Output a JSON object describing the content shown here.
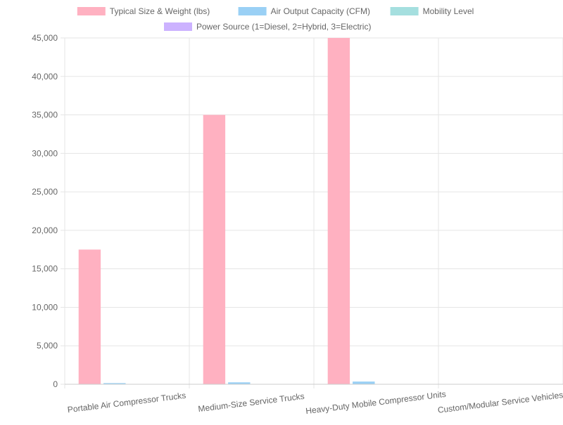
{
  "chart_data": {
    "type": "bar",
    "categories": [
      "Portable Air Compressor Trucks",
      "Medium-Size Service Trucks",
      "Heavy-Duty Mobile Compressor Units",
      "Custom/Modular Service Vehicles"
    ],
    "series": [
      {
        "name": "Typical Size & Weight (lbs)",
        "color": "#ffb1c1",
        "values": [
          17500,
          35000,
          45000,
          0
        ]
      },
      {
        "name": "Air Output Capacity (CFM)",
        "color": "#9ad0f5",
        "values": [
          150,
          250,
          350,
          0
        ]
      },
      {
        "name": "Mobility Level",
        "color": "#a5dfdf",
        "values": [
          3,
          2,
          1,
          2
        ]
      },
      {
        "name": "Power Source (1=Diesel, 2=Hybrid, 3=Electric)",
        "color": "#ccb2ff",
        "values": [
          1,
          1,
          1,
          2
        ]
      }
    ],
    "ylim": [
      0,
      45000
    ],
    "yticks": [
      0,
      5000,
      10000,
      15000,
      20000,
      25000,
      30000,
      35000,
      40000,
      45000
    ],
    "ytick_labels": [
      "0",
      "5,000",
      "10,000",
      "15,000",
      "20,000",
      "25,000",
      "30,000",
      "35,000",
      "40,000",
      "45,000"
    ],
    "grid": true,
    "legend_position": "top"
  }
}
